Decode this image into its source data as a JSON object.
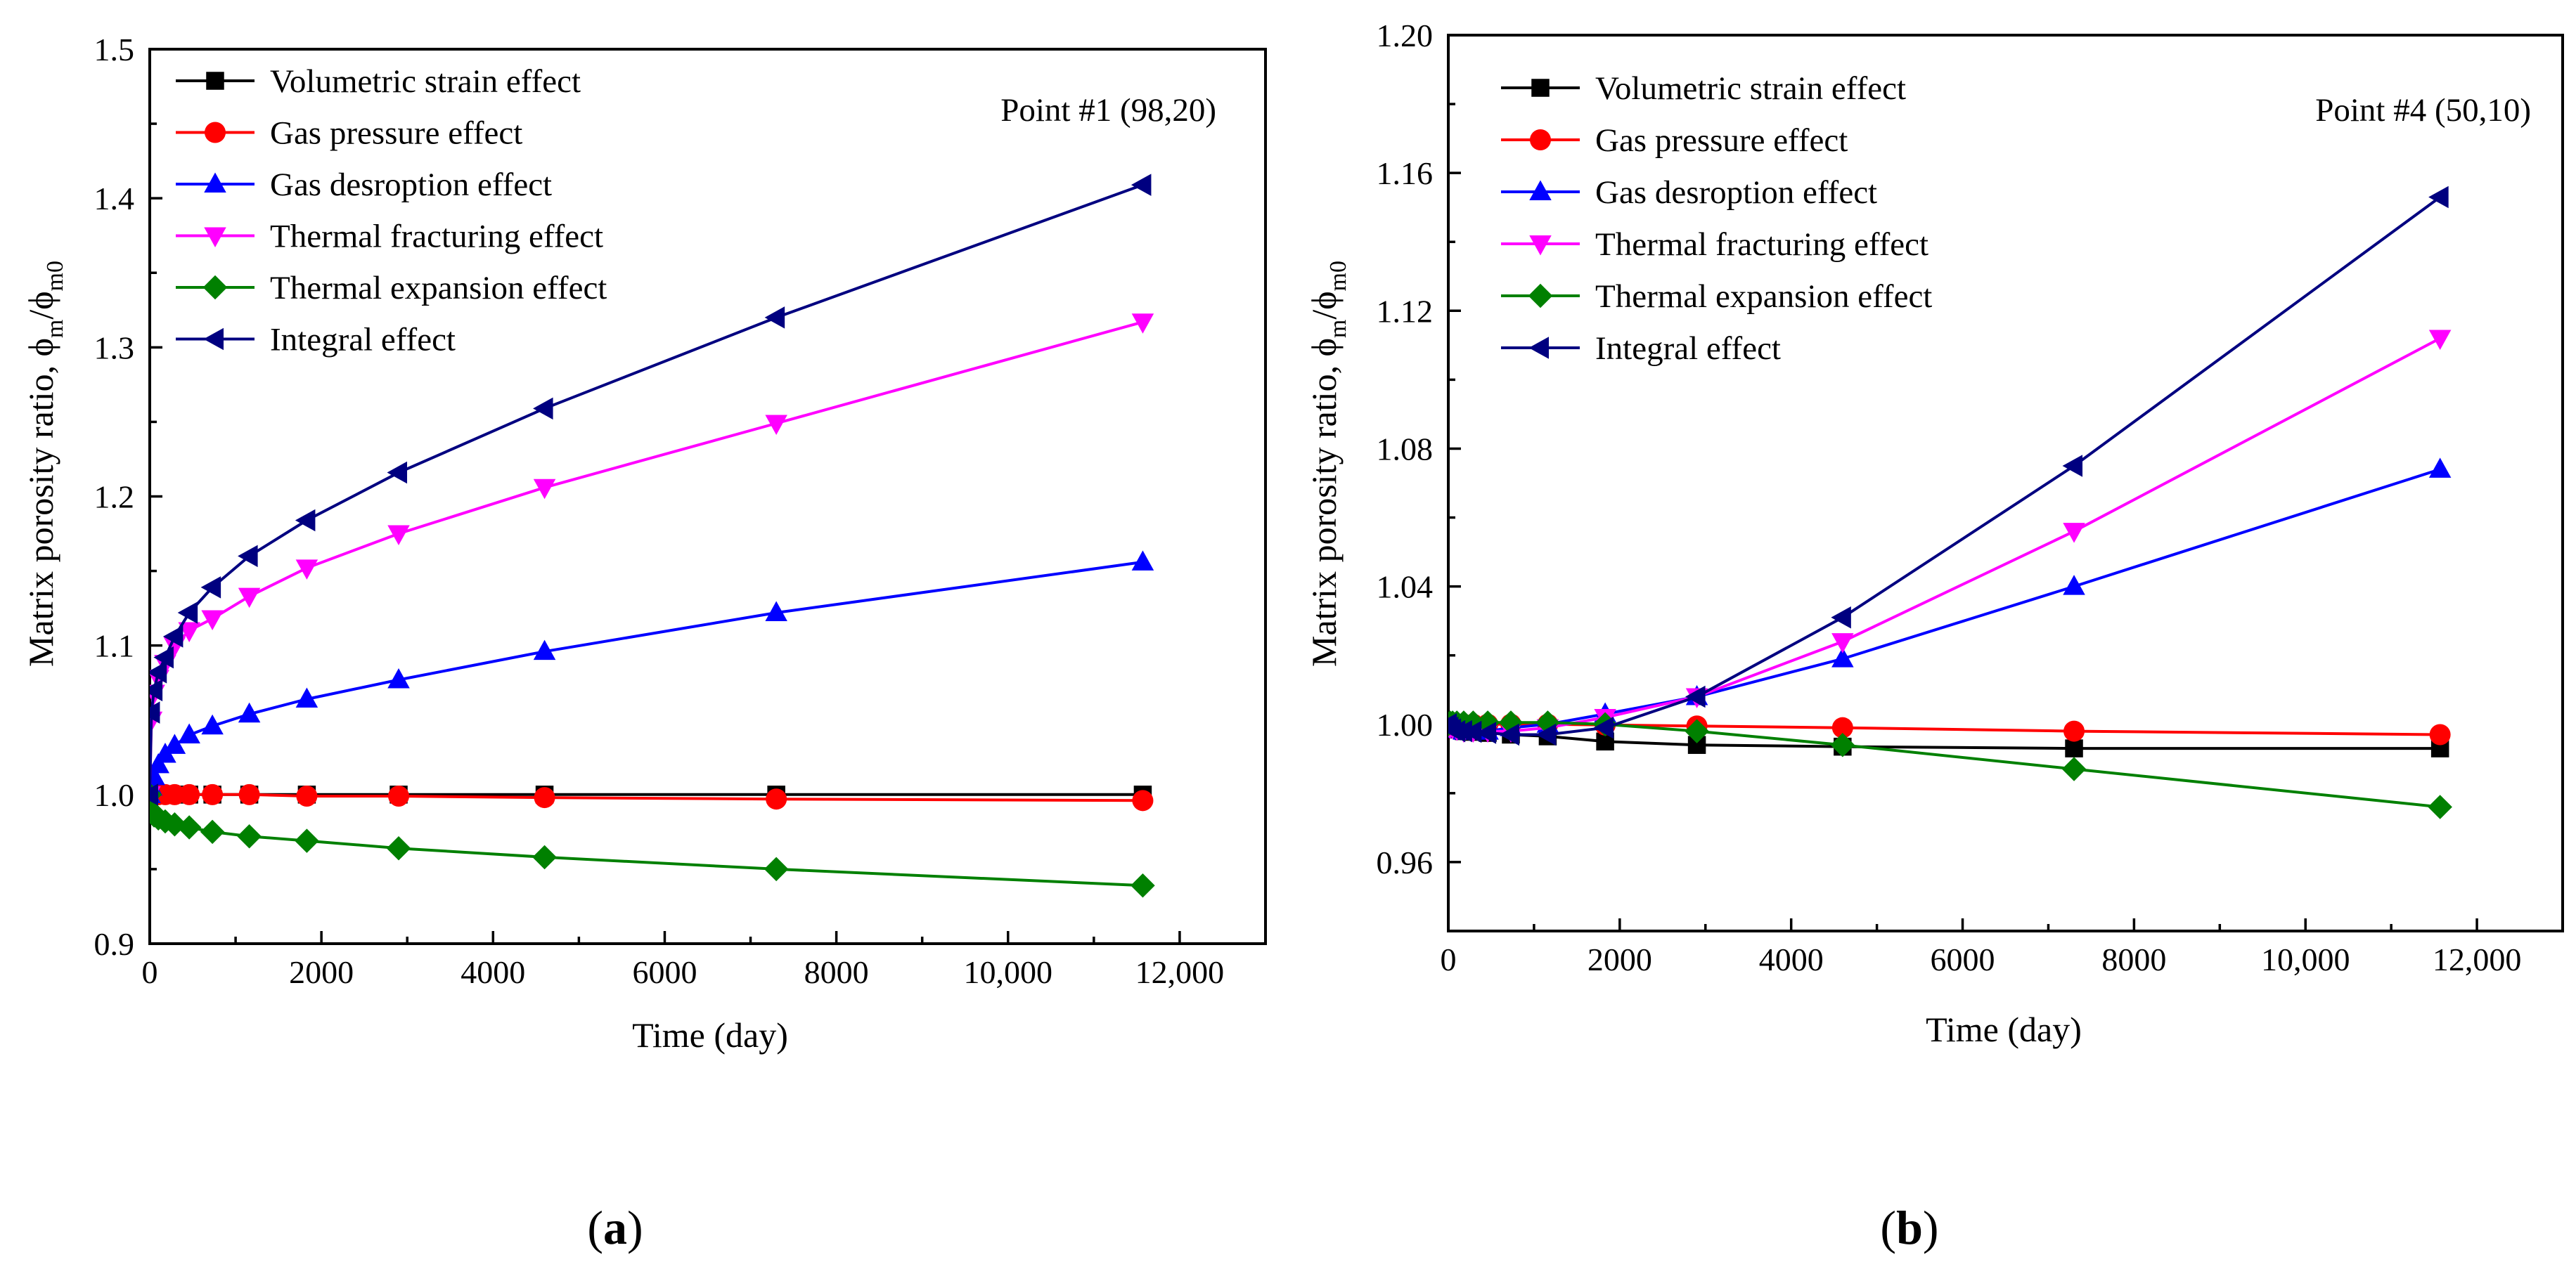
{
  "chart_data": [
    {
      "type": "line",
      "panel_label": "a",
      "annotation": "Point #1 (98,20)",
      "xlabel": "Time (day)",
      "ylabel": "Matrix porosity ratio, ϕm/ϕm0",
      "ylabel_main": "Matrix porosity ratio, ϕ",
      "ylabel_sub1": "m",
      "ylabel_slash": "/ϕ",
      "ylabel_sub2": "m0",
      "xlim": [
        0,
        13000
      ],
      "ylim": [
        0.9,
        1.5
      ],
      "xticks": [
        0,
        2000,
        4000,
        6000,
        8000,
        10000,
        12000
      ],
      "xtick_labels": [
        "0",
        "2000",
        "4000",
        "6000",
        "8000",
        "10,000",
        "12,000"
      ],
      "yticks": [
        0.9,
        1.0,
        1.1,
        1.2,
        1.3,
        1.4,
        1.5
      ],
      "ytick_labels": [
        "0.9",
        "1.0",
        "1.1",
        "1.2",
        "1.3",
        "1.4",
        "1.5"
      ],
      "x": [
        0,
        20,
        50,
        100,
        180,
        290,
        460,
        730,
        1160,
        1830,
        2900,
        4600,
        7300,
        11570
      ],
      "series": [
        {
          "name": "Volumetric strain effect",
          "color": "#000000",
          "marker": "square",
          "values": [
            1.0,
            1.0,
            1.0,
            1.0,
            1.0,
            1.0,
            1.0,
            1.0,
            1.0,
            1.0,
            1.0,
            1.0,
            1.0,
            1.0
          ]
        },
        {
          "name": "Gas pressure effect",
          "color": "#ff0000",
          "marker": "circle",
          "values": [
            1.0,
            1.0,
            1.0,
            1.0,
            1.0,
            1.0,
            1.0,
            1.0,
            1.0,
            0.999,
            0.999,
            0.998,
            0.997,
            0.996
          ]
        },
        {
          "name": "Gas desroption effect",
          "color": "#0000ff",
          "marker": "triangle-up",
          "values": [
            1.0,
            1.005,
            1.012,
            1.02,
            1.027,
            1.033,
            1.04,
            1.046,
            1.054,
            1.064,
            1.077,
            1.096,
            1.122,
            1.156
          ]
        },
        {
          "name": "Thermal fracturing effect",
          "color": "#ff00ff",
          "marker": "triangle-down",
          "values": [
            1.0,
            1.05,
            1.068,
            1.078,
            1.088,
            1.1,
            1.11,
            1.118,
            1.133,
            1.152,
            1.175,
            1.206,
            1.249,
            1.317
          ]
        },
        {
          "name": "Thermal expansion effect",
          "color": "#008000",
          "marker": "diamond",
          "values": [
            1.0,
            0.989,
            0.986,
            0.984,
            0.982,
            0.98,
            0.978,
            0.975,
            0.972,
            0.969,
            0.964,
            0.958,
            0.95,
            0.939
          ]
        },
        {
          "name": "Integral effect",
          "color": "#000080",
          "marker": "triangle-left",
          "values": [
            1.0,
            1.055,
            1.07,
            1.082,
            1.092,
            1.106,
            1.122,
            1.139,
            1.16,
            1.184,
            1.216,
            1.259,
            1.32,
            1.409
          ]
        }
      ]
    },
    {
      "type": "line",
      "panel_label": "b",
      "annotation": "Point #4 (50,10)",
      "xlabel": "Time (day)",
      "ylabel": "Matrix porosity ratio, ϕm/ϕm0",
      "ylabel_main": "Matrix porosity ratio, ϕ",
      "ylabel_sub1": "m",
      "ylabel_slash": "/ϕ",
      "ylabel_sub2": "m0",
      "xlim": [
        0,
        13000
      ],
      "ylim": [
        0.94,
        1.2
      ],
      "xticks": [
        0,
        2000,
        4000,
        6000,
        8000,
        10000,
        12000
      ],
      "xtick_labels": [
        "0",
        "2000",
        "4000",
        "6000",
        "8000",
        "10,000",
        "12,000"
      ],
      "yticks": [
        0.96,
        1.0,
        1.04,
        1.08,
        1.12,
        1.16,
        1.2
      ],
      "ytick_labels": [
        "0.96",
        "1.00",
        "1.04",
        "1.08",
        "1.12",
        "1.16",
        "1.20"
      ],
      "x": [
        0,
        20,
        50,
        100,
        180,
        290,
        460,
        730,
        1160,
        1830,
        2900,
        4600,
        7300,
        11570
      ],
      "series": [
        {
          "name": "Volumetric strain effect",
          "color": "#000000",
          "marker": "square",
          "values": [
            1.0,
            0.9995,
            0.999,
            0.9985,
            0.998,
            0.9978,
            0.9975,
            0.997,
            0.9965,
            0.995,
            0.994,
            0.9935,
            0.993,
            0.993
          ]
        },
        {
          "name": "Gas pressure effect",
          "color": "#ff0000",
          "marker": "circle",
          "values": [
            1.0,
            1.0,
            1.0,
            1.0,
            1.0,
            1.0,
            1.0,
            1.0,
            1.0,
            0.9998,
            0.9995,
            0.999,
            0.998,
            0.997
          ]
        },
        {
          "name": "Gas desroption effect",
          "color": "#0000ff",
          "marker": "triangle-up",
          "values": [
            1.0,
            0.999,
            0.999,
            0.9985,
            0.998,
            0.998,
            0.998,
            0.999,
            1.0,
            1.003,
            1.008,
            1.019,
            1.04,
            1.074
          ]
        },
        {
          "name": "Thermal fracturing effect",
          "color": "#ff00ff",
          "marker": "triangle-down",
          "values": [
            1.0,
            0.999,
            0.999,
            0.9985,
            0.998,
            0.998,
            0.998,
            0.998,
            0.999,
            1.002,
            1.008,
            1.024,
            1.056,
            1.112
          ]
        },
        {
          "name": "Thermal expansion effect",
          "color": "#008000",
          "marker": "diamond",
          "values": [
            1.0,
            1.0005,
            1.0005,
            1.0005,
            1.0005,
            1.0005,
            1.0005,
            1.0005,
            1.0005,
            1.0,
            0.998,
            0.994,
            0.987,
            0.976
          ]
        },
        {
          "name": "Integral effect",
          "color": "#000080",
          "marker": "triangle-left",
          "values": [
            1.0,
            0.999,
            0.9985,
            0.998,
            0.998,
            0.9978,
            0.9975,
            0.997,
            0.997,
            0.999,
            1.008,
            1.031,
            1.075,
            1.153
          ]
        }
      ]
    }
  ]
}
